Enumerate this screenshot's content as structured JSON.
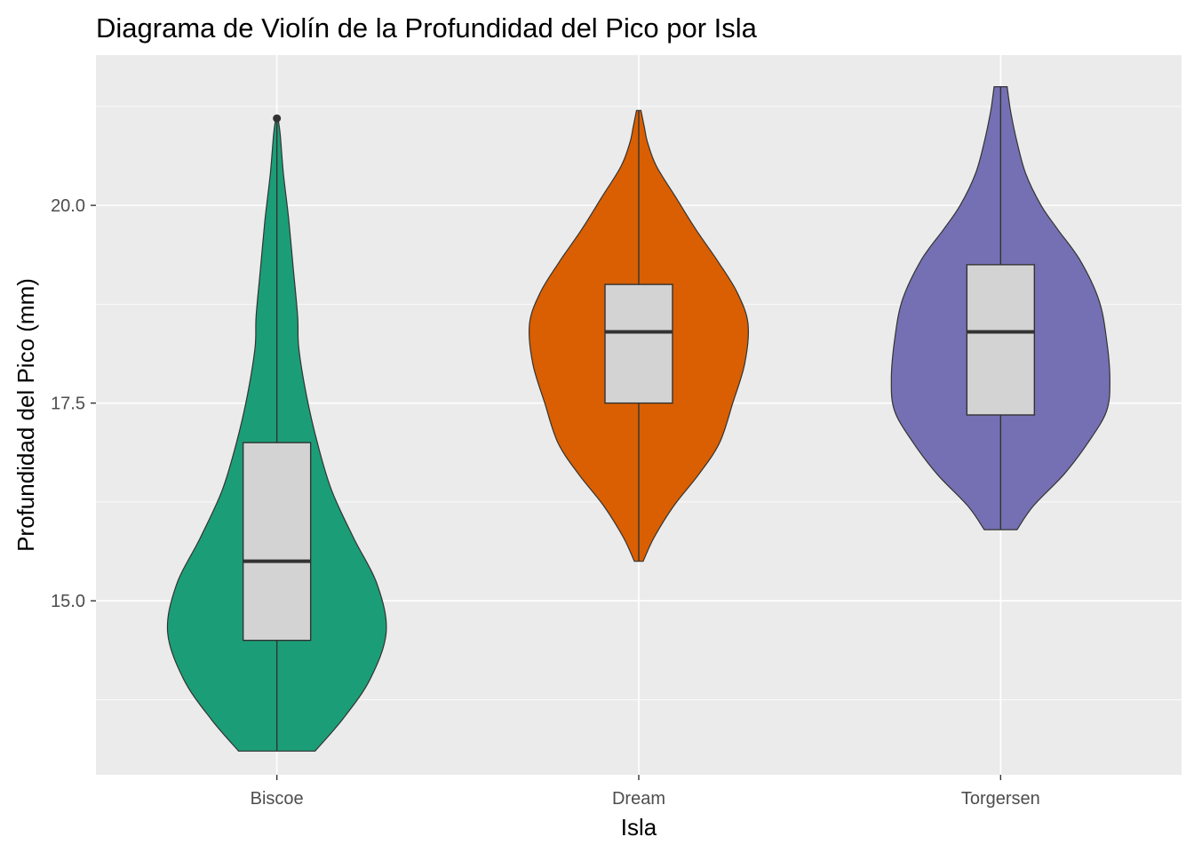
{
  "chart_data": {
    "type": "violin",
    "title": "Diagrama de Violín de la Profundidad del Pico por Isla",
    "xlabel": "Isla",
    "ylabel": "Profundidad del Pico (mm)",
    "ylim": [
      12.8,
      21.9
    ],
    "y_ticks": [
      15.0,
      17.5,
      20.0
    ],
    "y_tick_labels": [
      "15.0",
      "17.5",
      "20.0"
    ],
    "grid": true,
    "background": "#ebebeb",
    "box_fill": "#d3d3d3",
    "categories": [
      "Biscoe",
      "Dream",
      "Torgersen"
    ],
    "violins": [
      {
        "category": "Biscoe",
        "color": "#1b9e77",
        "min": 13.1,
        "q1": 14.5,
        "median": 15.5,
        "q3": 17.0,
        "max": 21.1,
        "outliers": [
          21.1
        ],
        "density": [
          [
            13.1,
            0.35
          ],
          [
            13.5,
            0.6
          ],
          [
            14.0,
            0.85
          ],
          [
            14.6,
            1.0
          ],
          [
            15.2,
            0.92
          ],
          [
            15.8,
            0.7
          ],
          [
            16.4,
            0.5
          ],
          [
            17.0,
            0.37
          ],
          [
            17.6,
            0.27
          ],
          [
            18.2,
            0.2
          ],
          [
            18.6,
            0.19
          ],
          [
            19.2,
            0.15
          ],
          [
            19.8,
            0.11
          ],
          [
            20.4,
            0.06
          ],
          [
            20.9,
            0.03
          ],
          [
            21.1,
            0.01
          ]
        ]
      },
      {
        "category": "Dream",
        "color": "#d95f02",
        "min": 15.5,
        "q1": 17.5,
        "median": 18.4,
        "q3": 19.0,
        "max": 21.2,
        "outliers": [],
        "density": [
          [
            15.5,
            0.04
          ],
          [
            15.8,
            0.14
          ],
          [
            16.2,
            0.32
          ],
          [
            16.6,
            0.55
          ],
          [
            17.0,
            0.74
          ],
          [
            17.5,
            0.86
          ],
          [
            18.0,
            0.97
          ],
          [
            18.5,
            1.0
          ],
          [
            18.9,
            0.9
          ],
          [
            19.3,
            0.72
          ],
          [
            19.7,
            0.52
          ],
          [
            20.1,
            0.34
          ],
          [
            20.5,
            0.16
          ],
          [
            20.8,
            0.08
          ],
          [
            21.0,
            0.05
          ],
          [
            21.2,
            0.02
          ]
        ]
      },
      {
        "category": "Torgersen",
        "color": "#7570b3",
        "min": 15.9,
        "q1": 17.35,
        "median": 18.4,
        "q3": 19.25,
        "max": 21.5,
        "outliers": [],
        "density": [
          [
            15.9,
            0.15
          ],
          [
            16.2,
            0.3
          ],
          [
            16.6,
            0.58
          ],
          [
            17.0,
            0.8
          ],
          [
            17.4,
            0.97
          ],
          [
            17.8,
            1.0
          ],
          [
            18.3,
            0.97
          ],
          [
            18.8,
            0.9
          ],
          [
            19.3,
            0.73
          ],
          [
            19.7,
            0.52
          ],
          [
            20.0,
            0.37
          ],
          [
            20.4,
            0.23
          ],
          [
            20.8,
            0.15
          ],
          [
            21.2,
            0.09
          ],
          [
            21.5,
            0.06
          ]
        ]
      }
    ]
  }
}
